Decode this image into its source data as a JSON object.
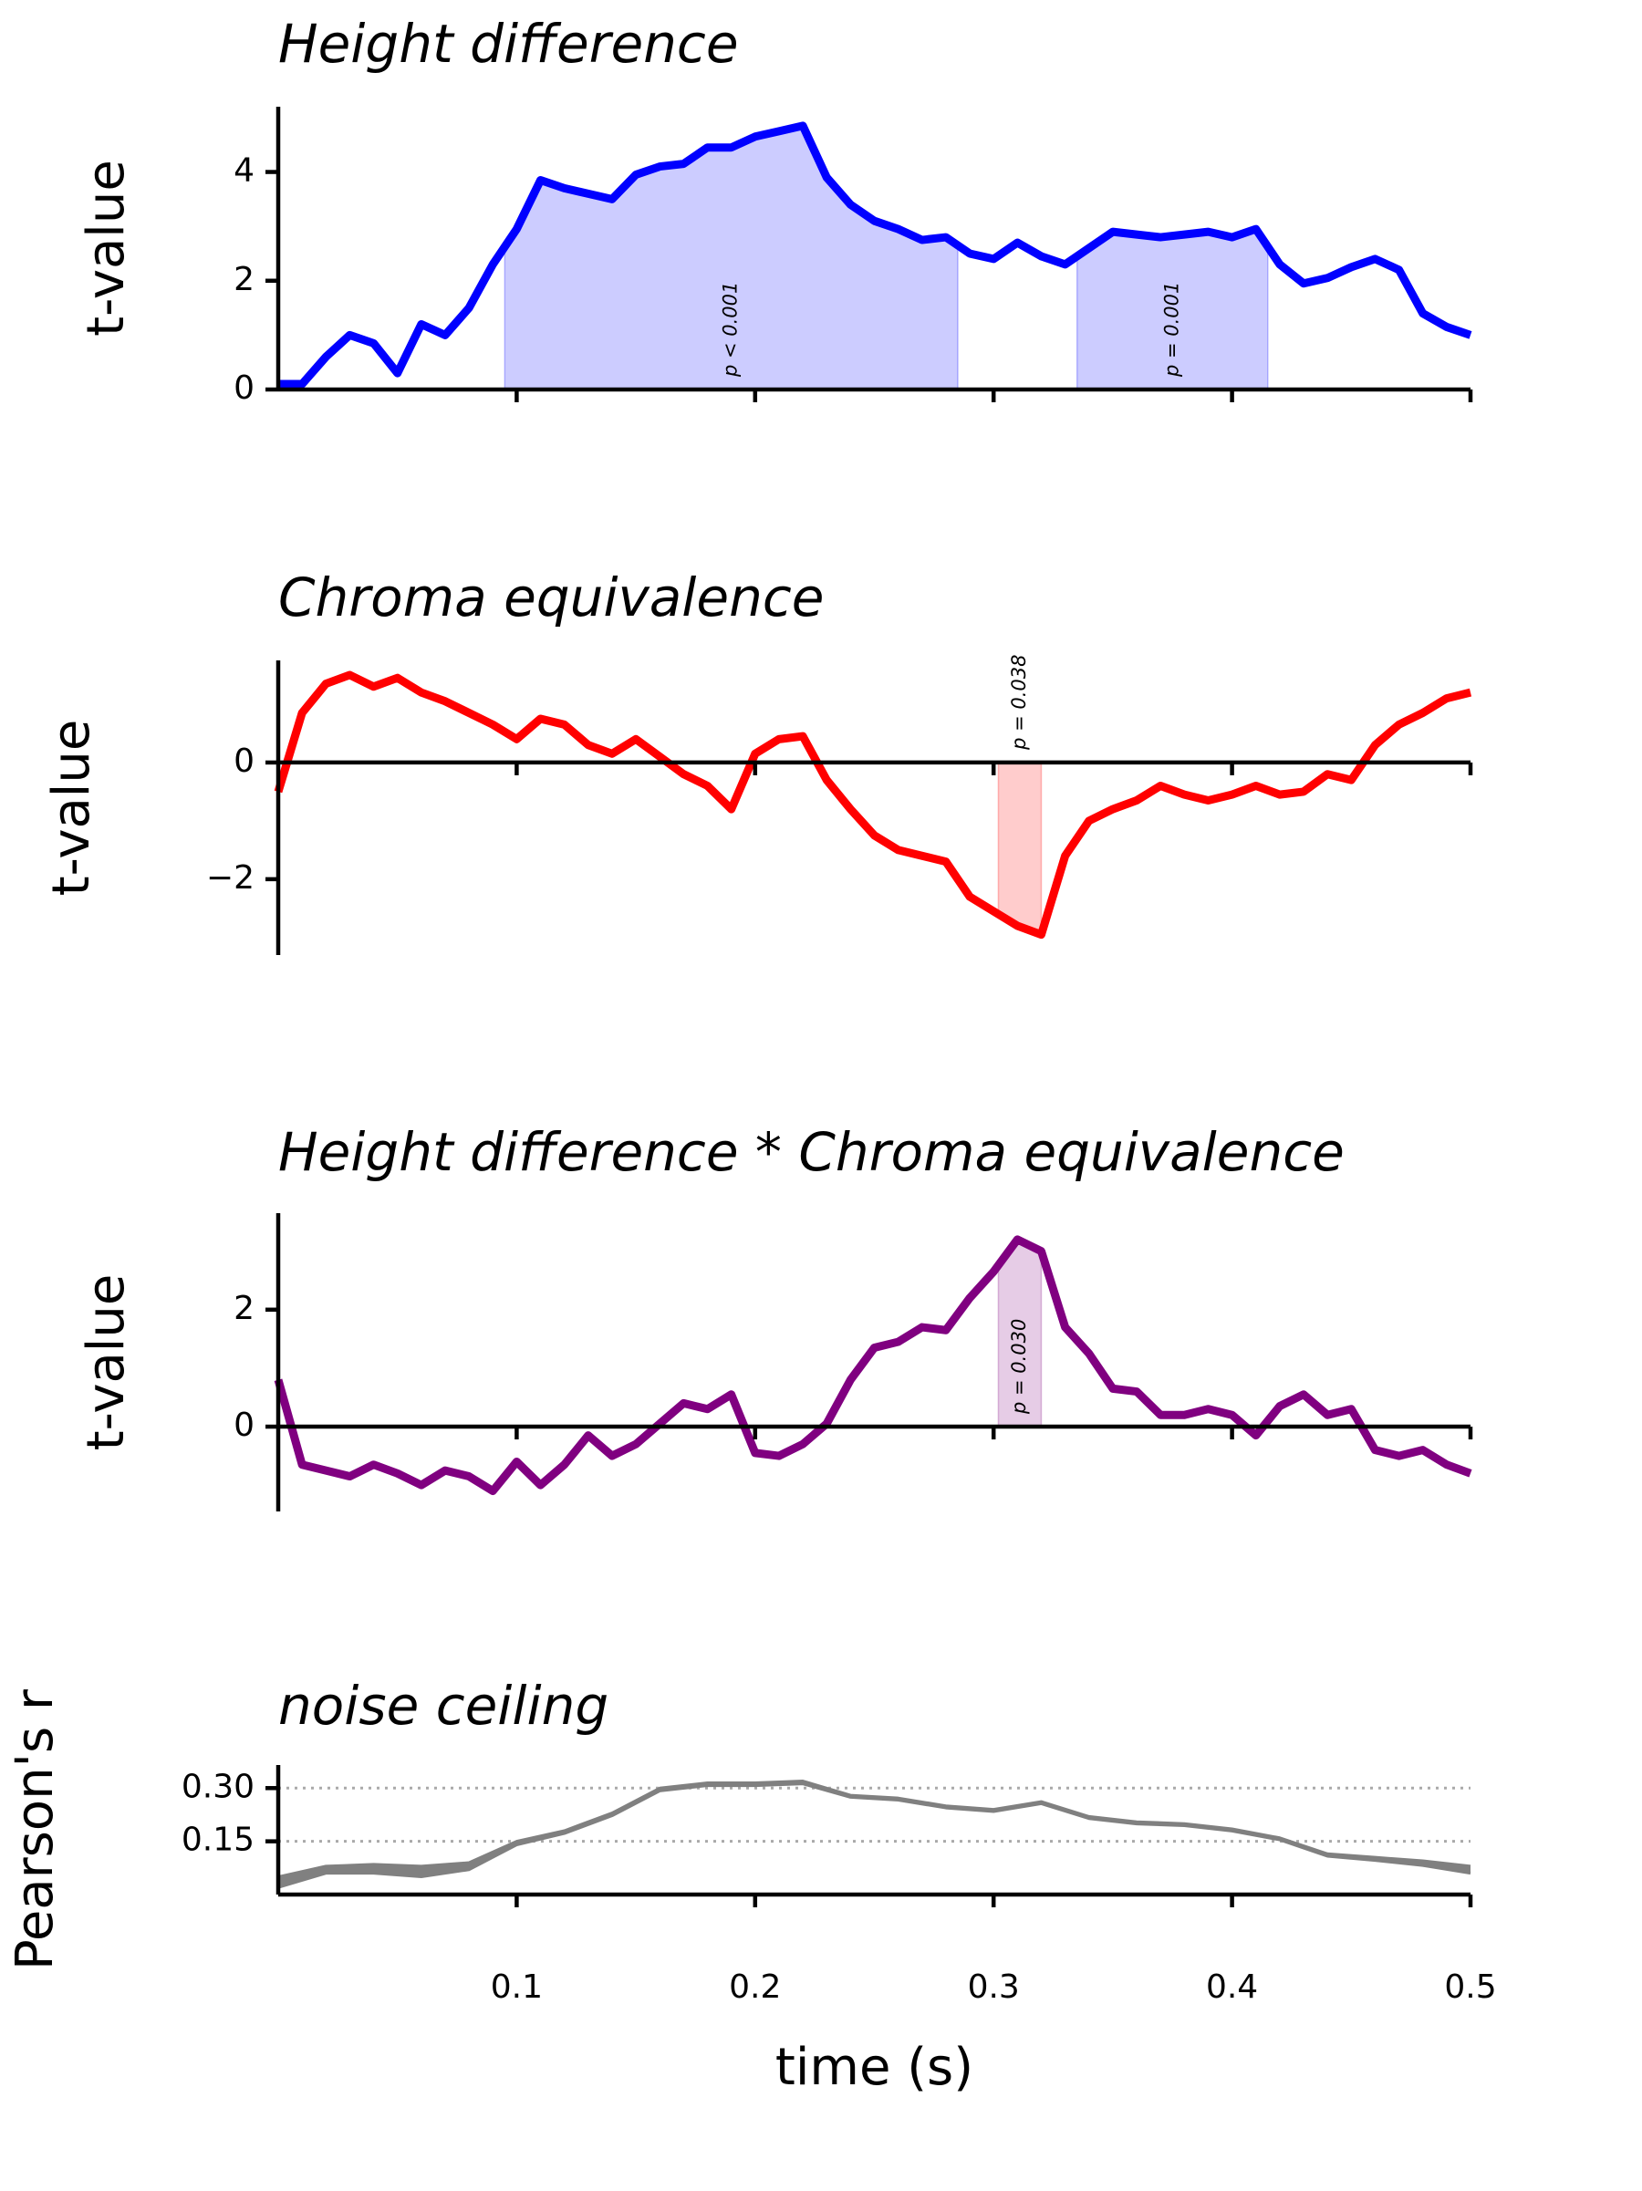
{
  "chart_data": [
    {
      "type": "line",
      "title": "Height difference",
      "ylabel": "t-value",
      "color": "#0000ff",
      "x": [
        0,
        0.01,
        0.02,
        0.03,
        0.04,
        0.05,
        0.06,
        0.07,
        0.08,
        0.09,
        0.1,
        0.11,
        0.12,
        0.13,
        0.14,
        0.15,
        0.16,
        0.17,
        0.18,
        0.19,
        0.2,
        0.21,
        0.22,
        0.23,
        0.24,
        0.25,
        0.26,
        0.27,
        0.28,
        0.29,
        0.3,
        0.31,
        0.32,
        0.33,
        0.34,
        0.35,
        0.36,
        0.37,
        0.38,
        0.39,
        0.4,
        0.41,
        0.42,
        0.43,
        0.44,
        0.45,
        0.46,
        0.47,
        0.48,
        0.49,
        0.5
      ],
      "values": [
        0.1,
        0.1,
        0.6,
        1.0,
        0.85,
        0.3,
        1.2,
        1.0,
        1.5,
        2.3,
        2.95,
        3.85,
        3.7,
        3.6,
        3.5,
        3.95,
        4.1,
        4.15,
        4.45,
        4.45,
        4.65,
        4.75,
        4.85,
        3.9,
        3.4,
        3.1,
        2.95,
        2.75,
        2.8,
        2.5,
        2.4,
        2.7,
        2.45,
        2.3,
        2.6,
        2.9,
        2.85,
        2.8,
        2.85,
        2.9,
        2.8,
        2.95,
        2.3,
        1.95,
        2.05,
        2.25,
        2.4,
        2.2,
        1.4,
        1.15,
        1.0
      ],
      "clusters": [
        {
          "start": 0.095,
          "end": 0.285,
          "label": "p < 0.001"
        },
        {
          "start": 0.335,
          "end": 0.415,
          "label": "p = 0.001"
        }
      ],
      "xlim": [
        0,
        0.5
      ],
      "xticks": [
        0.1,
        0.2,
        0.3,
        0.4,
        0.5
      ],
      "show_xtick_labels": false,
      "ylim": [
        0,
        5.2
      ],
      "yticks": [
        0,
        2,
        4
      ],
      "grid": false
    },
    {
      "type": "line",
      "title": "Chroma equivalence",
      "ylabel": "t-value",
      "color": "#ff0000",
      "x": [
        0,
        0.01,
        0.02,
        0.03,
        0.04,
        0.05,
        0.06,
        0.07,
        0.08,
        0.09,
        0.1,
        0.11,
        0.12,
        0.13,
        0.14,
        0.15,
        0.16,
        0.17,
        0.18,
        0.19,
        0.2,
        0.21,
        0.22,
        0.23,
        0.24,
        0.25,
        0.26,
        0.27,
        0.28,
        0.29,
        0.3,
        0.31,
        0.32,
        0.33,
        0.34,
        0.35,
        0.36,
        0.37,
        0.38,
        0.39,
        0.4,
        0.41,
        0.42,
        0.43,
        0.44,
        0.45,
        0.46,
        0.47,
        0.48,
        0.49,
        0.5
      ],
      "values": [
        -0.5,
        0.85,
        1.35,
        1.5,
        1.3,
        1.45,
        1.2,
        1.05,
        0.85,
        0.65,
        0.4,
        0.75,
        0.65,
        0.3,
        0.15,
        0.4,
        0.1,
        -0.2,
        -0.4,
        -0.8,
        0.15,
        0.4,
        0.45,
        -0.3,
        -0.8,
        -1.25,
        -1.5,
        -1.6,
        -1.7,
        -2.3,
        -2.55,
        -2.8,
        -2.95,
        -1.6,
        -1.0,
        -0.8,
        -0.65,
        -0.4,
        -0.55,
        -0.65,
        -0.55,
        -0.4,
        -0.55,
        -0.5,
        -0.2,
        -0.3,
        0.3,
        0.65,
        0.85,
        1.1,
        1.2
      ],
      "clusters": [
        {
          "start": 0.302,
          "end": 0.32,
          "label": "p = 0.038"
        }
      ],
      "xlim": [
        0,
        0.5
      ],
      "xticks": [
        0.1,
        0.2,
        0.3,
        0.4,
        0.5
      ],
      "show_xtick_labels": false,
      "ylim": [
        -3.3,
        1.75
      ],
      "yticks": [
        {
          "value": -2,
          "label": "−2"
        },
        0
      ],
      "grid": false
    },
    {
      "type": "line",
      "title": "Height difference * Chroma equivalence",
      "ylabel": "t-value",
      "color": "#800080",
      "x": [
        0,
        0.01,
        0.02,
        0.03,
        0.04,
        0.05,
        0.06,
        0.07,
        0.08,
        0.09,
        0.1,
        0.11,
        0.12,
        0.13,
        0.14,
        0.15,
        0.16,
        0.17,
        0.18,
        0.19,
        0.2,
        0.21,
        0.22,
        0.23,
        0.24,
        0.25,
        0.26,
        0.27,
        0.28,
        0.29,
        0.3,
        0.31,
        0.32,
        0.33,
        0.34,
        0.35,
        0.36,
        0.37,
        0.38,
        0.39,
        0.4,
        0.41,
        0.42,
        0.43,
        0.44,
        0.45,
        0.46,
        0.47,
        0.48,
        0.49,
        0.5
      ],
      "values": [
        0.8,
        -0.65,
        -0.75,
        -0.85,
        -0.65,
        -0.8,
        -1.0,
        -0.75,
        -0.85,
        -1.1,
        -0.6,
        -1.0,
        -0.65,
        -0.15,
        -0.5,
        -0.3,
        0.05,
        0.4,
        0.3,
        0.55,
        -0.45,
        -0.5,
        -0.3,
        0.05,
        0.8,
        1.35,
        1.45,
        1.7,
        1.65,
        2.2,
        2.65,
        3.2,
        3.0,
        1.7,
        1.25,
        0.65,
        0.6,
        0.2,
        0.2,
        0.3,
        0.2,
        -0.15,
        0.35,
        0.55,
        0.2,
        0.3,
        -0.4,
        -0.5,
        -0.4,
        -0.65,
        -0.8
      ],
      "clusters": [
        {
          "start": 0.302,
          "end": 0.32,
          "label": "p = 0.030"
        }
      ],
      "xlim": [
        0,
        0.5
      ],
      "xticks": [
        0.1,
        0.2,
        0.3,
        0.4,
        0.5
      ],
      "show_xtick_labels": false,
      "ylim": [
        -1.45,
        3.65
      ],
      "yticks": [
        0,
        2
      ],
      "grid": false
    },
    {
      "type": "band",
      "title": "noise ceiling",
      "ylabel": "Pearson's r",
      "xlabel": "time (s)",
      "color": "#808080",
      "x": [
        0,
        0.02,
        0.04,
        0.06,
        0.08,
        0.1,
        0.12,
        0.14,
        0.16,
        0.18,
        0.2,
        0.22,
        0.24,
        0.26,
        0.28,
        0.3,
        0.32,
        0.34,
        0.36,
        0.38,
        0.4,
        0.42,
        0.44,
        0.46,
        0.48,
        0.5
      ],
      "upper": [
        0.05,
        0.08,
        0.085,
        0.08,
        0.09,
        0.15,
        0.18,
        0.23,
        0.3,
        0.315,
        0.315,
        0.32,
        0.28,
        0.272,
        0.25,
        0.24,
        0.262,
        0.22,
        0.205,
        0.2,
        0.185,
        0.16,
        0.115,
        0.105,
        0.095,
        0.08
      ],
      "lower": [
        0.02,
        0.06,
        0.06,
        0.05,
        0.07,
        0.14,
        0.172,
        0.222,
        0.292,
        0.307,
        0.307,
        0.312,
        0.274,
        0.266,
        0.244,
        0.234,
        0.256,
        0.214,
        0.199,
        0.194,
        0.179,
        0.154,
        0.108,
        0.096,
        0.082,
        0.06
      ],
      "xlim": [
        0,
        0.5
      ],
      "xticks": [
        0.1,
        0.2,
        0.3,
        0.4,
        0.5
      ],
      "show_xtick_labels": true,
      "ylim": [
        0,
        0.365
      ],
      "yticks": [
        {
          "value": 0.15,
          "label": "0.15"
        },
        {
          "value": 0.3,
          "label": "0.30"
        }
      ],
      "grid": true
    }
  ]
}
